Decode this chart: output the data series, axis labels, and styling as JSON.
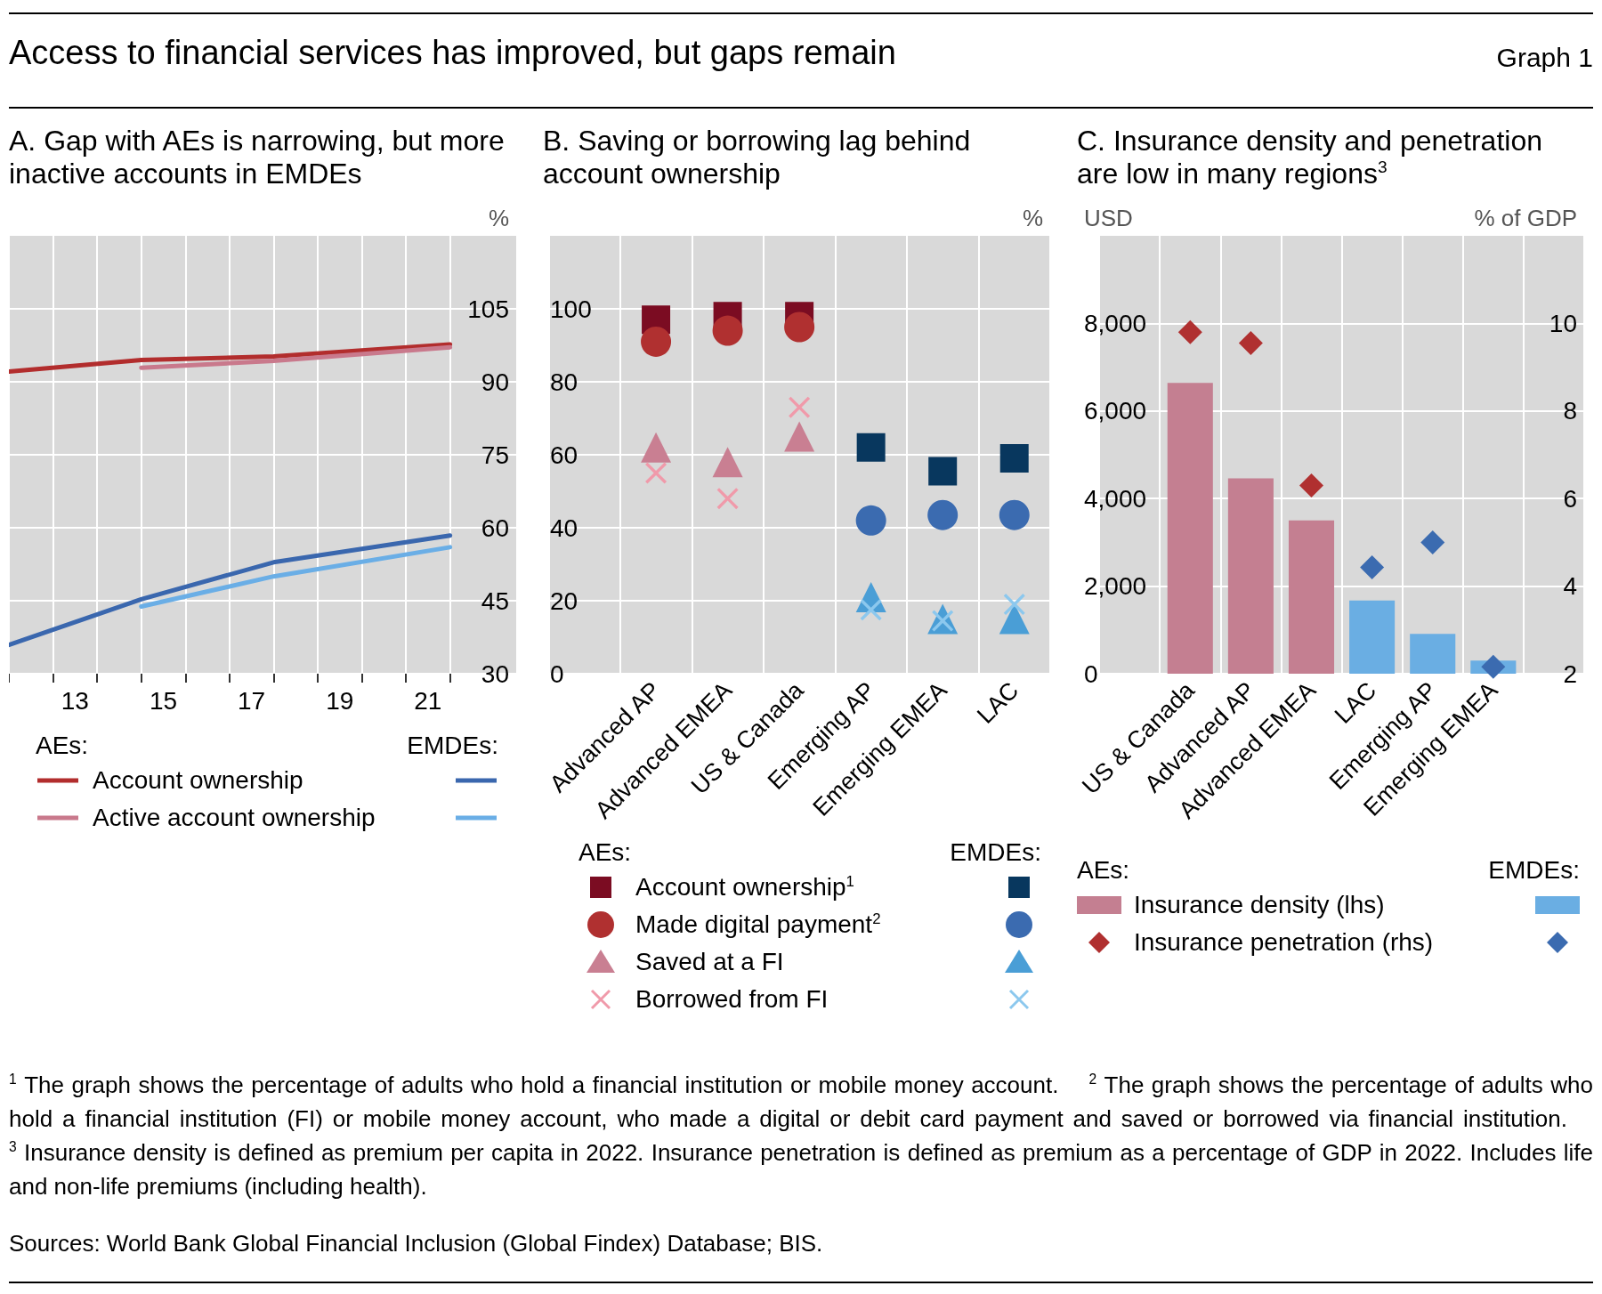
{
  "chart_data": [
    {
      "type": "other",
      "title": "Access to financial services has improved, but gaps remain",
      "subtitle": "Graph 1"
    },
    {
      "type": "line",
      "title": "A. Gap with AEs is narrowing, but more inactive accounts in EMDEs",
      "ylabel": "%",
      "x": [
        11.5,
        14.5,
        17.5,
        21.5
      ],
      "xlim": [
        11.5,
        23
      ],
      "xticks": [
        {
          "value": 11.5,
          "label": null
        },
        {
          "value": 12.5,
          "label": null
        },
        13,
        {
          "value": 13.5,
          "label": null
        },
        {
          "value": 14.5,
          "label": null
        },
        15,
        {
          "value": 15.5,
          "label": null
        },
        {
          "value": 16.5,
          "label": null
        },
        17,
        {
          "value": 17.5,
          "label": null
        },
        {
          "value": 18.5,
          "label": null
        },
        19,
        {
          "value": 19.5,
          "label": null
        },
        {
          "value": 20.5,
          "label": null
        },
        21,
        {
          "value": 21.5,
          "label": null
        }
      ],
      "ylim": [
        30,
        120
      ],
      "yticks": [
        30,
        45,
        60,
        75,
        90,
        105
      ],
      "grid": true,
      "legend": "bottom",
      "annotations": [
        "AEs:",
        "EMDEs:"
      ],
      "series": [
        {
          "name": "Account ownership",
          "color": "#b22d2d",
          "values": [
            92.1,
            94.5,
            95.2,
            97.7
          ]
        },
        {
          "name": "Active account ownership",
          "color": "#c9798c",
          "values": [
            null,
            92.9,
            94.3,
            97.1
          ]
        },
        {
          "color": "#3a67ae",
          "values": [
            35.9,
            45.3,
            52.9,
            58.4
          ]
        },
        {
          "color": "#6aaee6",
          "values": [
            null,
            43.8,
            50.0,
            56.0
          ]
        }
      ]
    },
    {
      "type": "scatter",
      "title": "B. Saving or borrowing lag behind account ownership",
      "ylabel": "%",
      "categories": [
        null,
        "Advanced AP",
        "Advanced EMEA",
        "US & Canada",
        "Emerging AP",
        "Emerging EMEA",
        "LAC"
      ],
      "ylim": [
        0,
        120
      ],
      "yticks": [
        0,
        20,
        40,
        60,
        80,
        100
      ],
      "grid": true,
      "legend": "bottom",
      "annotations": [
        "AEs:",
        "EMDEs:"
      ],
      "series": [
        {
          "name": "Account ownership$^{1}$",
          "color": "#7b0c22",
          "marker": "square",
          "values": [
            null,
            97,
            98,
            98,
            null,
            null,
            null
          ]
        },
        {
          "name": "Made digital payment$^{2}$",
          "color": "#b03030",
          "marker": "circle",
          "values": [
            null,
            91,
            94,
            95,
            null,
            null,
            null
          ]
        },
        {
          "name": "Saved at a FI",
          "color": "#c97f92",
          "marker": "triangle",
          "values": [
            null,
            62,
            58,
            65,
            null,
            null,
            null
          ]
        },
        {
          "name": "Borrowed from FI",
          "color": "#f09aaa",
          "marker": "cross",
          "values": [
            null,
            55,
            48,
            73,
            null,
            null,
            null
          ]
        },
        {
          "color": "#08375e",
          "marker": "square",
          "values": [
            null,
            null,
            null,
            null,
            62,
            55.5,
            59
          ]
        },
        {
          "color": "#3b6bb0",
          "marker": "circle",
          "values": [
            null,
            null,
            null,
            null,
            42,
            43.5,
            43.5
          ]
        },
        {
          "color": "#4a9ed6",
          "marker": "triangle",
          "values": [
            null,
            null,
            null,
            null,
            21,
            15,
            15
          ]
        },
        {
          "color": "#8cc8ee",
          "marker": "cross",
          "values": [
            null,
            null,
            null,
            null,
            17.5,
            14.5,
            19
          ]
        }
      ]
    },
    {
      "type": "bar",
      "title": "C. Insurance density and penetration are low in many regions$^{3}$",
      "ylabel": "USD",
      "y2label": "% of GDP",
      "categories": [
        null,
        "US & Canada",
        "Advanced AP",
        "Advanced EMEA",
        "LAC",
        "Emerging AP",
        "Emerging EMEA",
        null
      ],
      "ylim": [
        0,
        10000
      ],
      "yticks": [
        0,
        {
          "value": 2000,
          "label": "2,000"
        },
        {
          "value": 4000,
          "label": "4,000"
        },
        {
          "value": 6000,
          "label": "6,000"
        },
        {
          "value": 8000,
          "label": "8,000"
        }
      ],
      "y2lim": [
        2,
        12
      ],
      "y2ticks": [
        2,
        4,
        6,
        8,
        10
      ],
      "grid": true,
      "legend": "bottom",
      "annotations": [
        "AEs:",
        "EMDEs:"
      ],
      "series": [
        {
          "name": "Insurance density (lhs)",
          "type": "bar",
          "color": "#c47f91",
          "values": [
            null,
            6640,
            4460,
            3500,
            null,
            null,
            null,
            null
          ]
        },
        {
          "name": "Insurance penetration (rhs)",
          "type": "scatter",
          "marker": "diamond",
          "axis": "y2",
          "color": "#b03030",
          "values": [
            null,
            9.8,
            9.55,
            6.3,
            null,
            null,
            null,
            null
          ]
        },
        {
          "type": "bar",
          "color": "#6aaee3",
          "values": [
            null,
            null,
            null,
            null,
            1670,
            910,
            300,
            null
          ]
        },
        {
          "type": "scatter",
          "marker": "diamond",
          "axis": "y2",
          "color": "#3b6bb0",
          "values": [
            null,
            null,
            null,
            null,
            4.43,
            5.0,
            2.16,
            null
          ]
        }
      ]
    },
    {
      "type": "other",
      "annotations": [
        "$^{1}$ The graph shows the percentage of adults who hold a financial institution or mobile money account.",
        "$^{2}$ The graph shows the percentage of adults who hold a financial institution (FI) or mobile money account, who made a digital or debit card payment and saved or borrowed via financial institution.",
        "$^{3}$ Insurance density is defined as premium per capita in 2022. Insurance penetration is defined as premium as a percentage of GDP in 2022. Includes life and non-life premiums (including health).",
        "Sources: World Bank Global Financial Inclusion (Global Findex) Database; BIS."
      ]
    }
  ]
}
